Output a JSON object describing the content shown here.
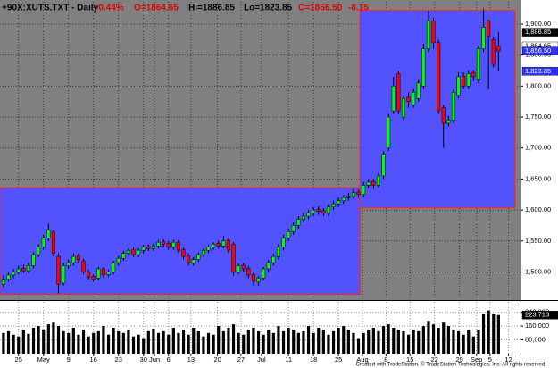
{
  "header": [
    {
      "text": "+90X:XUTS.TXT - Daily",
      "color": "#000000"
    },
    {
      "text": "-0.44%",
      "color": "#e00000"
    },
    {
      "text": "O=1864.65",
      "color": "#e00000"
    },
    {
      "text": "Hi=1886.85",
      "color": "#000000"
    },
    {
      "text": "Lo=1823.85",
      "color": "#000000"
    },
    {
      "text": "C=1856.50",
      "color": "#e00000"
    },
    {
      "text": "-8.15",
      "color": "#e00000"
    }
  ],
  "footer": "Created with TradeStation. © TradeStation Technologies, Inc. All rights reserved.",
  "chart_data": {
    "type": "candlestick",
    "open": [
      1480,
      1488,
      1495,
      1500,
      1506,
      1502,
      1510,
      1528,
      1540,
      1555,
      1565,
      1525,
      1482,
      1510,
      1515,
      1526,
      1518,
      1500,
      1493,
      1490,
      1505,
      1496,
      1500,
      1515,
      1522,
      1530,
      1536,
      1528,
      1535,
      1541,
      1538,
      1542,
      1549,
      1546,
      1540,
      1548,
      1536,
      1526,
      1514,
      1520,
      1528,
      1535,
      1540,
      1546,
      1542,
      1551,
      1545,
      1500,
      1511,
      1506,
      1496,
      1484,
      1490,
      1505,
      1515,
      1525,
      1540,
      1555,
      1565,
      1575,
      1585,
      1590,
      1595,
      1601,
      1599,
      1595,
      1605,
      1610,
      1615,
      1620,
      1622,
      1629,
      1625,
      1640,
      1646,
      1640,
      1655,
      1700,
      1760,
      1820,
      1750,
      1782,
      1770,
      1780,
      1800,
      1860,
      1905,
      1870,
      1765,
      1740,
      1745,
      1785,
      1816,
      1800,
      1822,
      1810,
      1860,
      1905,
      1875,
      1864.65
    ],
    "high": [
      1495,
      1500,
      1505,
      1510,
      1512,
      1515,
      1532,
      1545,
      1560,
      1578,
      1568,
      1530,
      1515,
      1520,
      1530,
      1530,
      1522,
      1504,
      1496,
      1508,
      1508,
      1504,
      1518,
      1526,
      1534,
      1538,
      1540,
      1538,
      1544,
      1545,
      1546,
      1552,
      1553,
      1550,
      1552,
      1552,
      1540,
      1530,
      1524,
      1531,
      1538,
      1544,
      1548,
      1550,
      1558,
      1555,
      1548,
      1514,
      1515,
      1510,
      1500,
      1494,
      1508,
      1519,
      1530,
      1545,
      1560,
      1570,
      1580,
      1590,
      1596,
      1600,
      1605,
      1606,
      1603,
      1610,
      1615,
      1620,
      1624,
      1628,
      1634,
      1633,
      1645,
      1650,
      1650,
      1660,
      1695,
      1755,
      1815,
      1825,
      1785,
      1790,
      1795,
      1810,
      1868,
      1922,
      1910,
      1875,
      1770,
      1752,
      1795,
      1822,
      1822,
      1826,
      1826,
      1865,
      1925,
      1908,
      1880,
      1886.85
    ],
    "low": [
      1475,
      1484,
      1490,
      1496,
      1498,
      1498,
      1506,
      1524,
      1536,
      1550,
      1525,
      1465,
      1478,
      1505,
      1510,
      1515,
      1496,
      1488,
      1484,
      1486,
      1490,
      1492,
      1496,
      1510,
      1518,
      1526,
      1524,
      1524,
      1530,
      1534,
      1534,
      1538,
      1540,
      1536,
      1536,
      1530,
      1520,
      1510,
      1510,
      1516,
      1524,
      1530,
      1536,
      1538,
      1538,
      1530,
      1494,
      1496,
      1500,
      1490,
      1478,
      1478,
      1486,
      1500,
      1510,
      1520,
      1535,
      1550,
      1560,
      1570,
      1580,
      1585,
      1590,
      1592,
      1590,
      1590,
      1600,
      1605,
      1610,
      1615,
      1618,
      1620,
      1620,
      1635,
      1634,
      1636,
      1650,
      1695,
      1755,
      1755,
      1745,
      1765,
      1765,
      1775,
      1795,
      1855,
      1860,
      1755,
      1700,
      1735,
      1740,
      1780,
      1795,
      1795,
      1808,
      1805,
      1855,
      1795,
      1830,
      1823.85
    ],
    "close": [
      1488,
      1495,
      1500,
      1505,
      1502,
      1510,
      1528,
      1540,
      1555,
      1568,
      1530,
      1480,
      1510,
      1515,
      1525,
      1520,
      1500,
      1492,
      1488,
      1505,
      1495,
      1500,
      1515,
      1522,
      1530,
      1535,
      1528,
      1535,
      1540,
      1538,
      1542,
      1548,
      1545,
      1540,
      1548,
      1535,
      1525,
      1515,
      1520,
      1528,
      1535,
      1540,
      1545,
      1542,
      1550,
      1535,
      1500,
      1510,
      1505,
      1495,
      1485,
      1490,
      1505,
      1515,
      1525,
      1540,
      1555,
      1565,
      1575,
      1585,
      1590,
      1595,
      1600,
      1598,
      1595,
      1605,
      1610,
      1615,
      1620,
      1622,
      1628,
      1625,
      1640,
      1645,
      1640,
      1655,
      1690,
      1750,
      1800,
      1760,
      1780,
      1775,
      1790,
      1805,
      1860,
      1905,
      1870,
      1760,
      1740,
      1745,
      1790,
      1815,
      1800,
      1820,
      1815,
      1860,
      1895,
      1880,
      1835,
      1856.5
    ],
    "volume": [
      120000,
      130000,
      110000,
      100000,
      140000,
      115000,
      150000,
      160000,
      140000,
      170000,
      180000,
      160000,
      130000,
      120000,
      150000,
      110000,
      140000,
      100000,
      120000,
      130000,
      160000,
      110000,
      150000,
      130000,
      120000,
      140000,
      100000,
      110000,
      90000,
      130000,
      145000,
      120000,
      130000,
      110000,
      150000,
      120000,
      140000,
      110000,
      150000,
      130000,
      100000,
      120000,
      110000,
      160000,
      130000,
      150000,
      170000,
      120000,
      110000,
      140000,
      150000,
      130000,
      110000,
      140000,
      120000,
      160000,
      130000,
      150000,
      140000,
      120000,
      130000,
      160000,
      120000,
      150000,
      140000,
      110000,
      130000,
      150000,
      160000,
      140000,
      120000,
      90000,
      120000,
      140000,
      150000,
      130000,
      160000,
      170000,
      150000,
      140000,
      130000,
      110000,
      140000,
      130000,
      160000,
      190000,
      170000,
      150000,
      180000,
      160000,
      140000,
      130000,
      110000,
      140000,
      100000,
      140000,
      230000,
      250000,
      230000,
      223713
    ],
    "xlim": [
      -0.7,
      103.4
    ],
    "xticks": [
      {
        "value": 3,
        "label": "25"
      },
      {
        "value": 8,
        "label": "May"
      },
      {
        "value": 13,
        "label": "9"
      },
      {
        "value": 18,
        "label": "16"
      },
      {
        "value": 23,
        "label": "23"
      },
      {
        "value": 28,
        "label": "30"
      },
      {
        "value": 30.2,
        "label": "Jun"
      },
      {
        "value": 33,
        "label": "6"
      },
      {
        "value": 37.5,
        "label": "13"
      },
      {
        "value": 42.8,
        "label": "20"
      },
      {
        "value": 47.5,
        "label": "27"
      },
      {
        "value": 51.6,
        "label": "Jul"
      },
      {
        "value": 57,
        "label": "11"
      },
      {
        "value": 62,
        "label": "18"
      },
      {
        "value": 67,
        "label": "25"
      },
      {
        "value": 71.8,
        "label": "Aug"
      },
      {
        "value": 76.5,
        "label": "8"
      },
      {
        "value": 81.3,
        "label": "15"
      },
      {
        "value": 86.2,
        "label": "22"
      },
      {
        "value": 91.2,
        "label": "29"
      },
      {
        "value": 94.6,
        "label": "Sep"
      },
      {
        "value": 97.3,
        "label": "5"
      },
      {
        "value": 101,
        "label": "12"
      }
    ],
    "ylim": [
      1456,
      1936
    ],
    "yticks": [
      {
        "value": 1500,
        "label": "1,500.00"
      },
      {
        "value": 1550,
        "label": "1,550.00"
      },
      {
        "value": 1600,
        "label": "1,600.00"
      },
      {
        "value": 1650,
        "label": "1,650.00"
      },
      {
        "value": 1700,
        "label": "1,700.00"
      },
      {
        "value": 1750,
        "label": "1,750.00"
      },
      {
        "value": 1800,
        "label": "1,800.00"
      },
      {
        "value": 1850,
        "label": "1,850.00"
      },
      {
        "value": 1900,
        "label": "1,900.00"
      }
    ],
    "volume_ylim": [
      0,
      300000
    ],
    "volume_yticks": [
      {
        "value": 80000,
        "label": "80,000"
      },
      {
        "value": 160000,
        "label": "160,000"
      },
      {
        "value": 240000,
        "label": "240,000"
      }
    ],
    "price_markers": [
      {
        "value": 1886.85,
        "label": "1,886.85",
        "color": "#000000",
        "text_color": "#ffffff"
      },
      {
        "value": 1864.65,
        "label": "1,864.65",
        "color": "#ffffff",
        "text_color": "#000000"
      },
      {
        "value": 1856.5,
        "label": "1,856.50",
        "color": "#3030ff",
        "text_color": "#ffffff"
      },
      {
        "value": 1823.85,
        "label": "1,823.85",
        "color": "#3030ff",
        "text_color": "#ffffff"
      }
    ],
    "volume_marker": {
      "value": 223713,
      "label": "223,713",
      "color": "#000000",
      "text_color": "#ffffff"
    },
    "highlight_boxes": [
      {
        "x": [
          -0.7,
          71.3
        ],
        "y": [
          1464,
          1636
        ]
      },
      {
        "x": [
          71.3,
          102.3
        ],
        "y": [
          1604,
          1922
        ]
      }
    ],
    "grid": true,
    "colors": {
      "up": "#00ff00",
      "down": "#ff0000",
      "wick": "#000000",
      "volume": "#000000",
      "background": "#808080",
      "box": "#5252ff",
      "box_border": "#ff2020"
    }
  }
}
